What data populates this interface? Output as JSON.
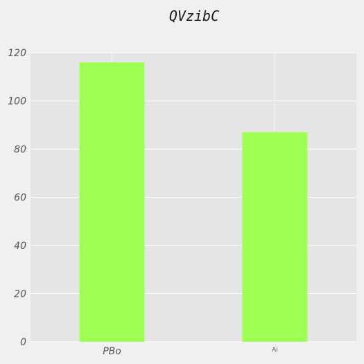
{
  "chart_data": {
    "type": "bar",
    "title": "QVzibC",
    "xlabel": "",
    "ylabel": "",
    "categories": [
      "PBo",
      "Ai"
    ],
    "values": [
      116,
      87
    ],
    "ylim": [
      0,
      120
    ],
    "yticks": [
      0,
      20,
      40,
      60,
      80,
      100,
      120
    ],
    "grid": true,
    "legend": "none",
    "colors": {
      "bar": "#a0ff55",
      "plot_background": "#e5e5e5",
      "figure_background": "#f0f0f0",
      "grid": "#ffffff"
    }
  }
}
